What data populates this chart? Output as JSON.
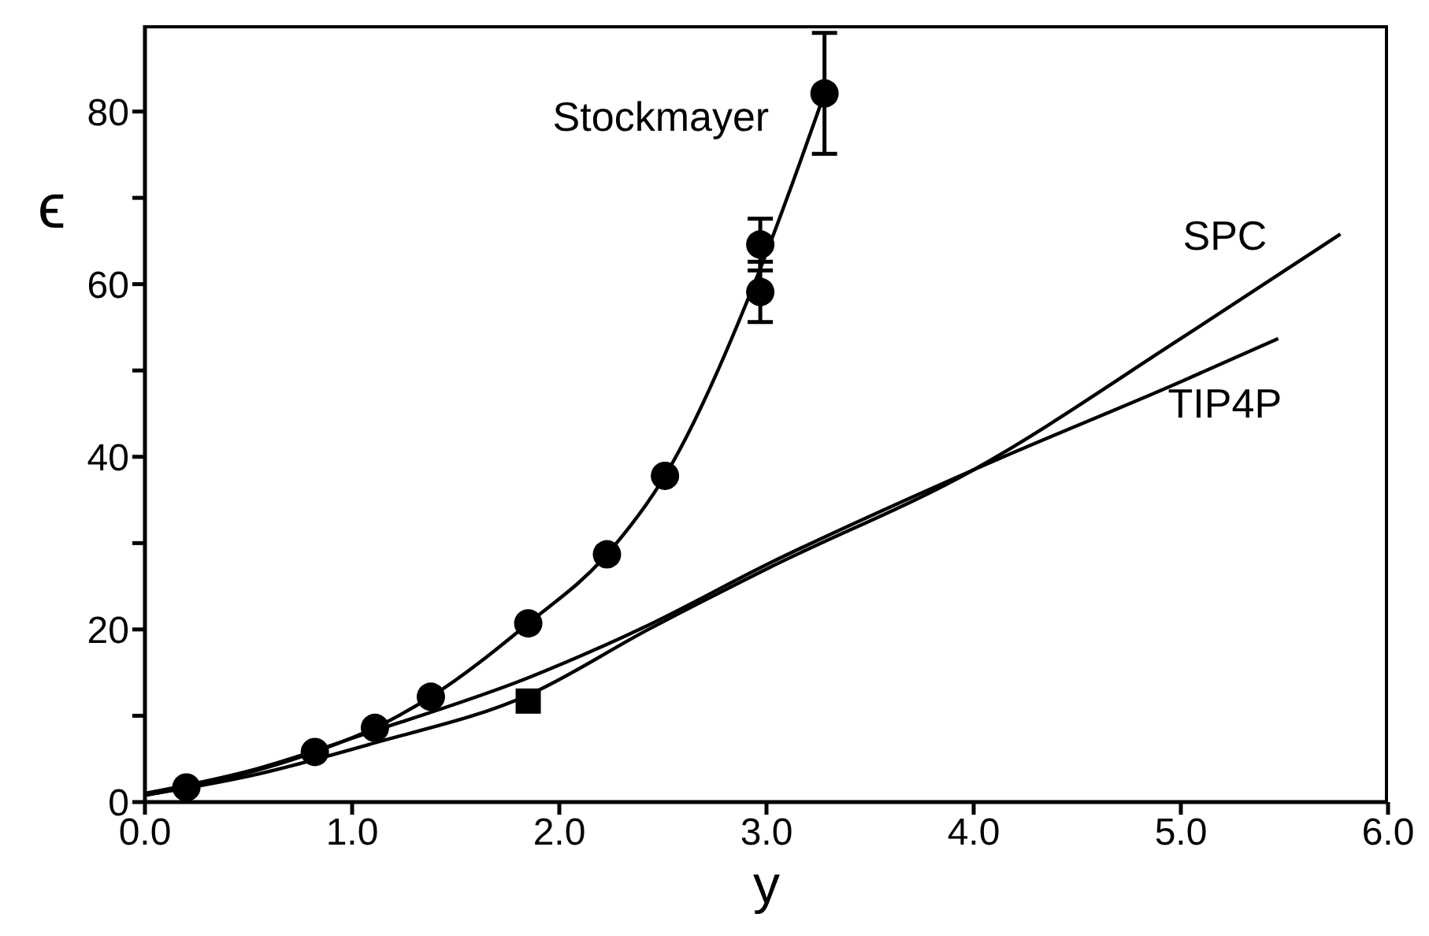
{
  "chart_data": {
    "type": "scatter",
    "xlabel": "y",
    "ylabel": "ϵ",
    "xlim": [
      0,
      6
    ],
    "ylim": [
      0,
      90
    ],
    "xticks": [
      {
        "value": 0,
        "label": "0.0"
      },
      {
        "value": 1,
        "label": "1.0"
      },
      {
        "value": 2,
        "label": "2.0"
      },
      {
        "value": 3,
        "label": "3.0"
      },
      {
        "value": 4,
        "label": "4.0"
      },
      {
        "value": 5,
        "label": "5.0"
      },
      {
        "value": 6,
        "label": "6.0"
      }
    ],
    "yticks": [
      0,
      {
        "value": 10,
        "label": null
      },
      20,
      {
        "value": 30,
        "label": null
      },
      40,
      {
        "value": 50,
        "label": null
      },
      60,
      {
        "value": 70,
        "label": null
      },
      80
    ],
    "grid": false,
    "legend": false,
    "series": [
      {
        "name": "Stockmayer",
        "marker": "circle",
        "color": "#000000",
        "x": [
          0.2,
          0.82,
          1.11,
          1.38,
          1.85,
          2.23,
          2.51,
          2.97,
          2.97,
          3.28
        ],
        "values": [
          1.7,
          5.8,
          8.6,
          12.2,
          20.7,
          28.7,
          37.8,
          64.6,
          59.1,
          82.1
        ],
        "errors": [
          null,
          null,
          null,
          null,
          null,
          null,
          null,
          3,
          3.5,
          7
        ]
      },
      {
        "type": "line",
        "marker": "none",
        "color": "#000000",
        "x": [
          0,
          0.2,
          0.82,
          1.11,
          1.38,
          1.85,
          2.23,
          2.51,
          2.97,
          3.28
        ],
        "values": [
          0.8,
          1.7,
          5.8,
          8.6,
          12.2,
          20.7,
          28.7,
          37.8,
          61.8,
          82.1
        ]
      },
      {
        "marker": "square",
        "color": "#000000",
        "x": [
          1.85
        ],
        "values": [
          11.7
        ]
      },
      {
        "name": "SPC",
        "type": "line",
        "marker": "none",
        "color": "#000000",
        "x": [
          0,
          0.5,
          1.1,
          1.85,
          2.43,
          3,
          4,
          5,
          5.77
        ],
        "values": [
          0.8,
          3,
          6.8,
          12.4,
          20,
          27,
          38.5,
          53.7,
          65.8
        ]
      },
      {
        "name": "TIP4P",
        "type": "line",
        "marker": "none",
        "color": "#000000",
        "x": [
          0,
          0.5,
          1.1,
          1.85,
          2.43,
          3,
          4,
          5,
          5.47
        ],
        "values": [
          1,
          3.6,
          8.2,
          14.4,
          20.5,
          27.5,
          38.5,
          48.7,
          53.7
        ]
      }
    ]
  }
}
